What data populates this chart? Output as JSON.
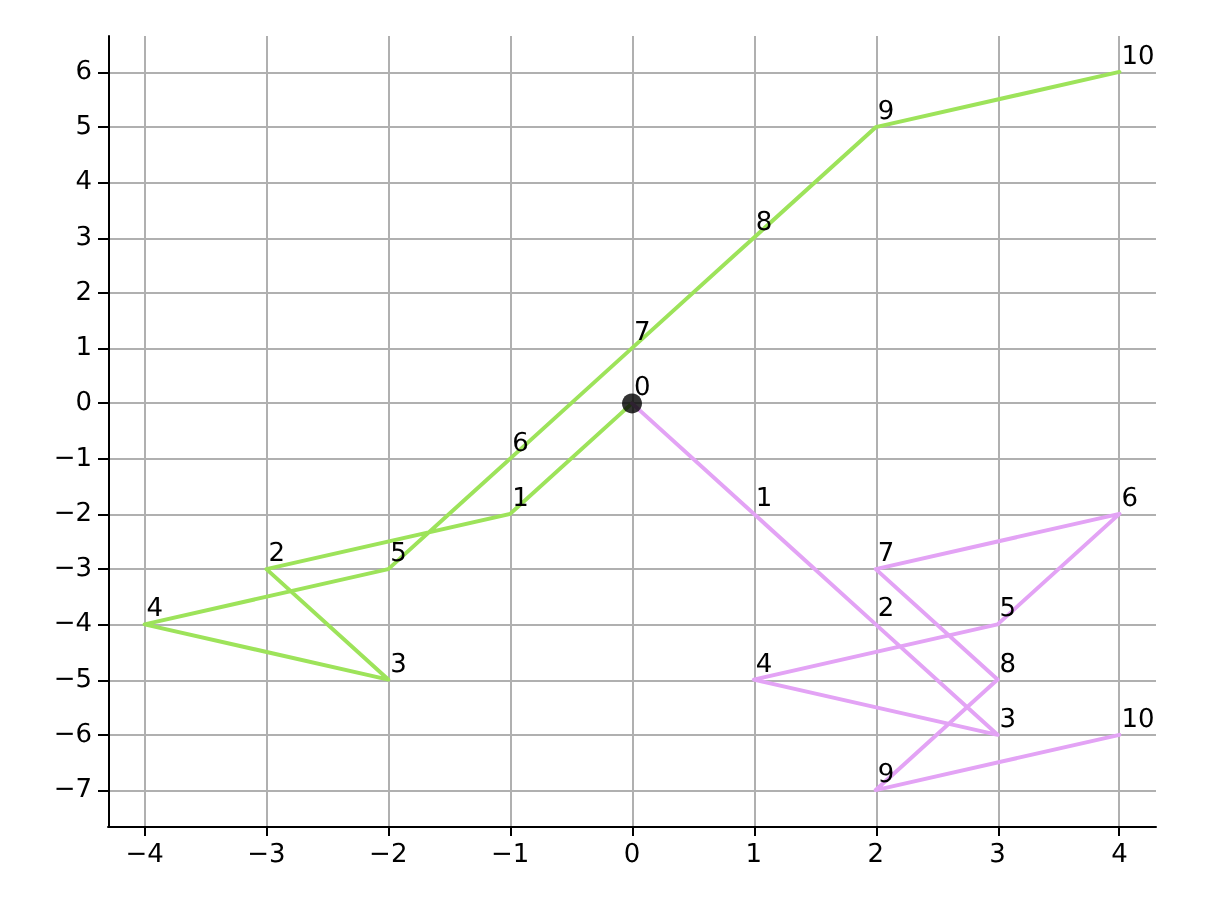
{
  "chart_data": {
    "type": "line",
    "marker": "none",
    "grid": true,
    "xlim": [
      -4.3,
      4.3
    ],
    "ylim": [
      -7.65,
      6.65
    ],
    "xticks": [
      {
        "value": -4,
        "label": "−4"
      },
      {
        "value": -3,
        "label": "−3"
      },
      {
        "value": -2,
        "label": "−2"
      },
      {
        "value": -1,
        "label": "−1"
      },
      0,
      1,
      2,
      3,
      4
    ],
    "yticks": [
      {
        "value": -7,
        "label": "−7"
      },
      {
        "value": -6,
        "label": "−6"
      },
      {
        "value": -5,
        "label": "−5"
      },
      {
        "value": -4,
        "label": "−4"
      },
      {
        "value": -3,
        "label": "−3"
      },
      {
        "value": -2,
        "label": "−2"
      },
      {
        "value": -1,
        "label": "−1"
      },
      0,
      1,
      2,
      3,
      4,
      5,
      6
    ],
    "series": [
      {
        "color": "#9de35a",
        "x": [
          0,
          -1,
          -3,
          -2,
          -4,
          -2,
          -1,
          0,
          1,
          2,
          4
        ],
        "values": [
          0,
          -2,
          -3,
          -5,
          -4,
          -3,
          -1,
          1,
          3,
          5,
          6
        ]
      },
      {
        "color": "#e3a3f5",
        "x": [
          0,
          1,
          2,
          3,
          1,
          3,
          4,
          2,
          3,
          2,
          4
        ],
        "values": [
          0,
          -2,
          -4,
          -6,
          -5,
          -4,
          -2,
          -3,
          -5,
          -7,
          -6
        ]
      },
      {
        "type": "scatter",
        "marker": "circle",
        "color": "#000000",
        "x": [
          0
        ],
        "values": [
          0
        ]
      }
    ],
    "annotations": [
      {
        "text": "0",
        "x": 0,
        "y": 0
      },
      {
        "text": "1",
        "x": -1,
        "y": -2
      },
      {
        "text": "2",
        "x": -3,
        "y": -3
      },
      {
        "text": "3",
        "x": -2,
        "y": -5
      },
      {
        "text": "4",
        "x": -4,
        "y": -4
      },
      {
        "text": "5",
        "x": -2,
        "y": -3
      },
      {
        "text": "6",
        "x": -1,
        "y": -1
      },
      {
        "text": "7",
        "x": 0,
        "y": 1
      },
      {
        "text": "8",
        "x": 1,
        "y": 3
      },
      {
        "text": "9",
        "x": 2,
        "y": 5
      },
      {
        "text": "10",
        "x": 4,
        "y": 6
      },
      {
        "text": "1",
        "x": 1,
        "y": -2
      },
      {
        "text": "2",
        "x": 2,
        "y": -4
      },
      {
        "text": "3",
        "x": 3,
        "y": -6
      },
      {
        "text": "4",
        "x": 1,
        "y": -5
      },
      {
        "text": "5",
        "x": 3,
        "y": -4
      },
      {
        "text": "6",
        "x": 4,
        "y": -2
      },
      {
        "text": "7",
        "x": 2,
        "y": -3
      },
      {
        "text": "8",
        "x": 3,
        "y": -5
      },
      {
        "text": "9",
        "x": 2,
        "y": -7
      },
      {
        "text": "10",
        "x": 4,
        "y": -6
      }
    ]
  }
}
